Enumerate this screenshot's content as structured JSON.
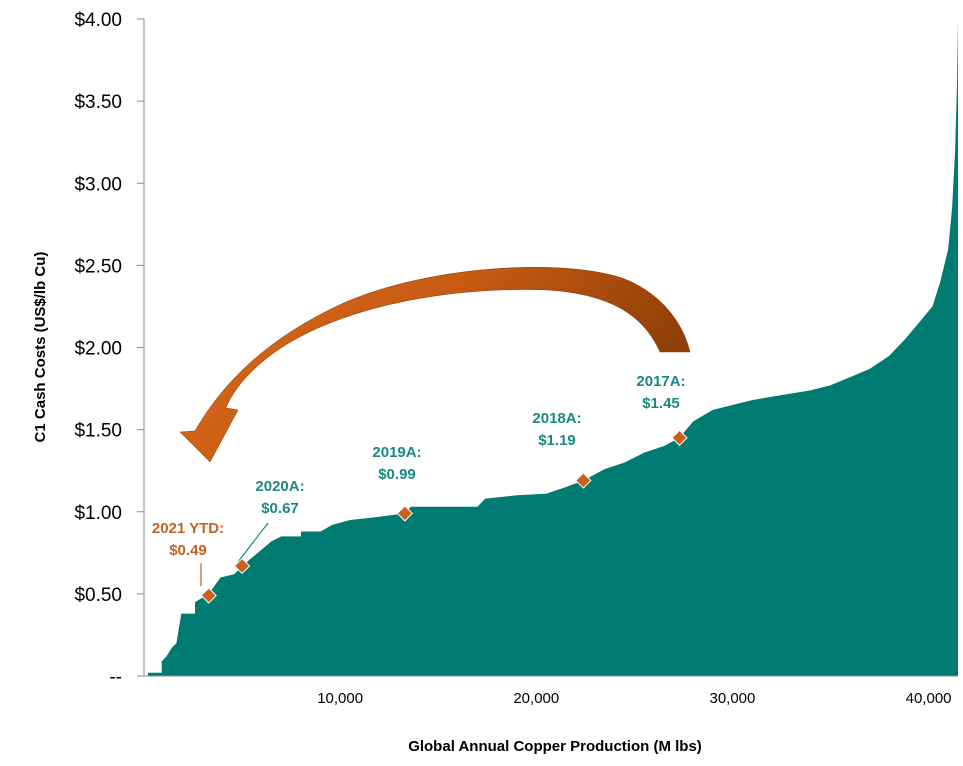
{
  "chart_data": {
    "type": "area",
    "title": "",
    "xlabel": "Global Annual Copper Production (M lbs)",
    "ylabel": "C1 Cash Costs (US$/lb Cu)",
    "xlim": [
      0,
      41500
    ],
    "ylim": [
      0,
      4.0
    ],
    "yticks": [
      0,
      0.5,
      1.0,
      1.5,
      2.0,
      2.5,
      3.0,
      3.5,
      4.0
    ],
    "ytick_labels": [
      "--",
      "$0.50",
      "$1.00",
      "$1.50",
      "$2.00",
      "$2.50",
      "$3.00",
      "$3.50",
      "$4.00"
    ],
    "xticks": [
      10000,
      20000,
      30000,
      40000
    ],
    "xtick_labels": [
      "10,000",
      "20,000",
      "30,000",
      "40,000"
    ],
    "grid": false,
    "colors": {
      "curve": "#007b72",
      "marker": "#c8611f",
      "teal_label": "#1a8a80",
      "orange_label": "#c8611f",
      "arrow": "#c65a12"
    },
    "series": [
      {
        "values": [
          [
            200,
            0.02
          ],
          [
            900,
            0.02
          ],
          [
            900,
            0.09
          ],
          [
            1150,
            0.12
          ],
          [
            1400,
            0.17
          ],
          [
            1650,
            0.2
          ],
          [
            1900,
            0.38
          ],
          [
            2600,
            0.38
          ],
          [
            2600,
            0.45
          ],
          [
            3300,
            0.5
          ],
          [
            3900,
            0.6
          ],
          [
            4600,
            0.62
          ],
          [
            5300,
            0.7
          ],
          [
            6000,
            0.77
          ],
          [
            6500,
            0.82
          ],
          [
            7000,
            0.85
          ],
          [
            8000,
            0.85
          ],
          [
            8000,
            0.88
          ],
          [
            9000,
            0.88
          ],
          [
            9600,
            0.92
          ],
          [
            10500,
            0.95
          ],
          [
            12000,
            0.97
          ],
          [
            13300,
            0.99
          ],
          [
            13600,
            1.03
          ],
          [
            17000,
            1.03
          ],
          [
            17400,
            1.08
          ],
          [
            19000,
            1.1
          ],
          [
            20500,
            1.11
          ],
          [
            21500,
            1.15
          ],
          [
            22400,
            1.19
          ],
          [
            23500,
            1.26
          ],
          [
            24500,
            1.3
          ],
          [
            25500,
            1.36
          ],
          [
            26500,
            1.4
          ],
          [
            27300,
            1.45
          ],
          [
            28000,
            1.55
          ],
          [
            29000,
            1.62
          ],
          [
            30000,
            1.65
          ],
          [
            31000,
            1.68
          ],
          [
            32000,
            1.7
          ],
          [
            33000,
            1.72
          ],
          [
            34000,
            1.74
          ],
          [
            35000,
            1.77
          ],
          [
            36000,
            1.82
          ],
          [
            37000,
            1.87
          ],
          [
            38000,
            1.95
          ],
          [
            38800,
            2.05
          ],
          [
            39500,
            2.15
          ],
          [
            40200,
            2.25
          ],
          [
            40600,
            2.4
          ],
          [
            41000,
            2.6
          ],
          [
            41200,
            2.85
          ],
          [
            41350,
            3.2
          ],
          [
            41450,
            3.6
          ],
          [
            41500,
            4.0
          ],
          [
            41500,
            0
          ]
        ]
      }
    ],
    "annotations": [
      {
        "year": "2021 YTD:",
        "value": "$0.49",
        "x": 3300,
        "y": 0.49,
        "color": "orange"
      },
      {
        "year": "2020A:",
        "value": "$0.67",
        "x": 5000,
        "y": 0.67,
        "color": "teal"
      },
      {
        "year": "2019A:",
        "value": "$0.99",
        "x": 13300,
        "y": 0.99,
        "color": "teal"
      },
      {
        "year": "2018A:",
        "value": "$1.19",
        "x": 22400,
        "y": 1.19,
        "color": "teal"
      },
      {
        "year": "2017A:",
        "value": "$1.45",
        "x": 27300,
        "y": 1.45,
        "color": "teal"
      }
    ]
  }
}
